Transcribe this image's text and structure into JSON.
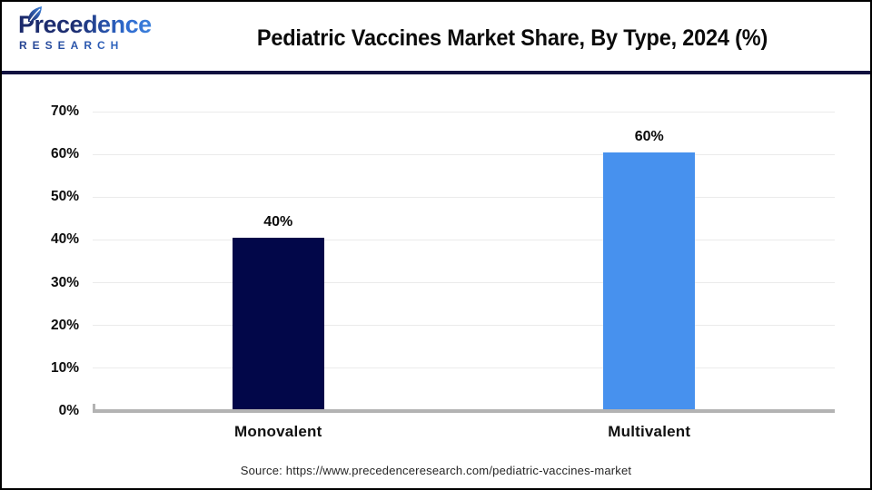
{
  "header": {
    "logo": {
      "brand": "Precedence",
      "subtext": "RESEARCH",
      "leaf_icon": "leaf-icon"
    },
    "title": "Pediatric Vaccines Market Share, By Type, 2024 (%)"
  },
  "chart_data": {
    "type": "bar",
    "title": "Pediatric Vaccines Market Share, By Type, 2024 (%)",
    "categories": [
      "Monovalent",
      "Multivalent"
    ],
    "values": [
      40,
      60
    ],
    "value_labels": [
      "40%",
      "60%"
    ],
    "bar_colors": [
      "#020749",
      "#4791ee"
    ],
    "ylim": [
      0,
      70
    ],
    "ytick_step": 10,
    "ytick_labels": [
      "0%",
      "10%",
      "20%",
      "30%",
      "40%",
      "50%",
      "60%",
      "70%"
    ],
    "grid": true,
    "legend": false,
    "xlabel": "",
    "ylabel": ""
  },
  "footer": {
    "source": "Source: https://www.precedenceresearch.com/pediatric-vaccines-market"
  },
  "colors": {
    "bar_monovalent": "#020749",
    "bar_multivalent": "#4791ee",
    "divider_navy": "#11113f",
    "gridline": "#ebebeb",
    "axis_line": "#b3b3b3",
    "brand_navy": "#1b2a6b",
    "brand_blue": "#4a93e4"
  }
}
